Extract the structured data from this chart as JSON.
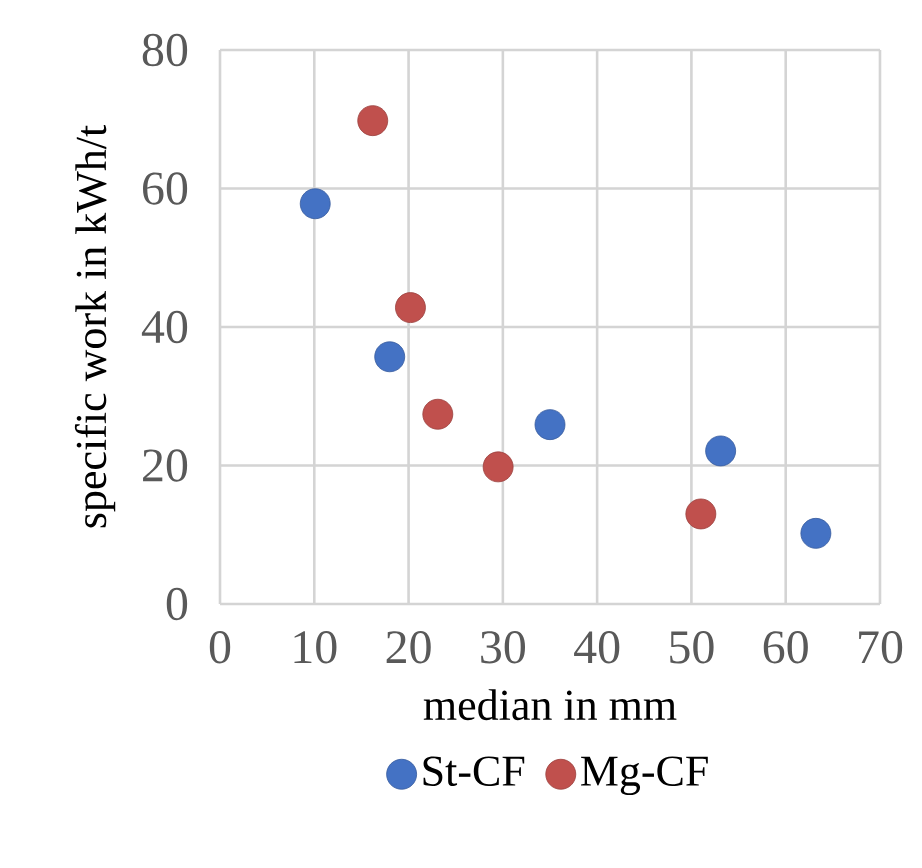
{
  "chart_data": {
    "type": "scatter",
    "xlabel": "median in mm",
    "ylabel": "specific work in kWh/t",
    "series": [
      {
        "name": "St-CF",
        "color": "#4472c4",
        "x": [
          10.1,
          18.0,
          35.0,
          53.1,
          63.2
        ],
        "values": [
          57.8,
          35.7,
          25.9,
          22.1,
          10.2
        ]
      },
      {
        "name": "Mg-CF",
        "color": "#c0504d",
        "x": [
          16.2,
          20.2,
          23.1,
          29.5,
          51.0
        ],
        "values": [
          69.8,
          42.8,
          27.4,
          19.8,
          13.0
        ]
      }
    ],
    "xlim": [
      0,
      70
    ],
    "ylim": [
      0,
      80
    ],
    "xticks": [
      0,
      10,
      20,
      30,
      40,
      50,
      60,
      70
    ],
    "yticks": [
      0,
      20,
      40,
      60,
      80
    ],
    "grid": true,
    "legend": "bottom",
    "marker": "circle"
  }
}
